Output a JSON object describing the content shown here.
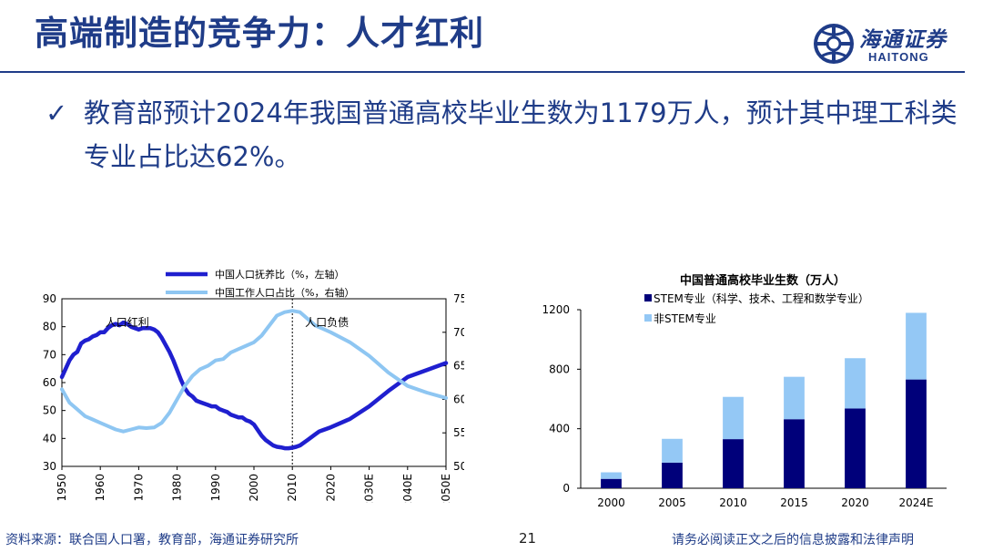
{
  "header": {
    "title": "高端制造的竞争力：人才红利"
  },
  "logo": {
    "cn": "海通证券",
    "en": "HAITONG"
  },
  "bullet": {
    "check": "✓",
    "text": "教育部预计2024年我国普通高校毕业生数为1179万人，预计其中理工科类专业占比达62%。"
  },
  "colors": {
    "dark_blue": "#1f1fcf",
    "light_blue": "#8ec6f2",
    "navy": "#00007a",
    "sky": "#94c8f5",
    "brand": "#1f3c88"
  },
  "chart_data": [
    {
      "type": "line",
      "title": "",
      "x_ticks": [
        "1950",
        "1960",
        "1970",
        "1980",
        "1990",
        "2000",
        "2010",
        "2020",
        "2030E",
        "2040E",
        "2050E"
      ],
      "y_left": {
        "range": [
          30,
          90
        ],
        "ticks": [
          30,
          40,
          50,
          60,
          70,
          80,
          90
        ]
      },
      "y_right": {
        "range": [
          50,
          75
        ],
        "ticks": [
          50,
          55,
          60,
          65,
          70,
          75
        ]
      },
      "legend_position": "top",
      "annotations": [
        {
          "text": "人口红利",
          "x": 1967
        },
        {
          "text": "人口负债",
          "x": 2019
        }
      ],
      "reference_line_x": 2010,
      "series": [
        {
          "name": "中国人口抚养比（%，左轴）",
          "axis": "left",
          "x": [
            1950,
            1951,
            1952,
            1953,
            1954,
            1955,
            1956,
            1957,
            1958,
            1959,
            1960,
            1961,
            1962,
            1963,
            1964,
            1965,
            1966,
            1967,
            1968,
            1969,
            1970,
            1971,
            1972,
            1973,
            1974,
            1975,
            1976,
            1977,
            1978,
            1979,
            1980,
            1981,
            1982,
            1983,
            1984,
            1985,
            1986,
            1987,
            1988,
            1989,
            1990,
            1991,
            1992,
            1993,
            1994,
            1995,
            1996,
            1997,
            1998,
            1999,
            2000,
            2001,
            2002,
            2003,
            2004,
            2005,
            2006,
            2007,
            2008,
            2009,
            2010,
            2011,
            2012,
            2013,
            2014,
            2015,
            2016,
            2017,
            2018,
            2019,
            2020,
            2025,
            2030,
            2035,
            2040,
            2045,
            2050
          ],
          "values": [
            62,
            65,
            68,
            70,
            71,
            74,
            75,
            75.5,
            76.5,
            77,
            78,
            78,
            79.5,
            80.5,
            81,
            80.5,
            81.5,
            81,
            80,
            79.5,
            79,
            79.5,
            79.5,
            79.5,
            79,
            78,
            76,
            73.5,
            71,
            68,
            64.5,
            61,
            58,
            56,
            55,
            53.5,
            53,
            52.5,
            52,
            51.5,
            51.5,
            50.5,
            50,
            49.5,
            48.5,
            48,
            47.5,
            47.5,
            46.5,
            46,
            45,
            43,
            41,
            39.5,
            38.5,
            37.5,
            37,
            36.8,
            36.5,
            36.5,
            36.7,
            37,
            37.5,
            38.5,
            39.5,
            40.5,
            41.5,
            42.5,
            43,
            43.5,
            44,
            47,
            51.5,
            57,
            62,
            64.5,
            67
          ]
        },
        {
          "name": "中国工作人口占比（%，右轴）",
          "axis": "right",
          "x": [
            1950,
            1952,
            1954,
            1956,
            1958,
            1960,
            1962,
            1964,
            1966,
            1968,
            1970,
            1972,
            1974,
            1976,
            1978,
            1980,
            1982,
            1984,
            1986,
            1988,
            1990,
            1992,
            1994,
            1996,
            1998,
            2000,
            2002,
            2004,
            2006,
            2008,
            2010,
            2012,
            2014,
            2016,
            2018,
            2020,
            2025,
            2030,
            2035,
            2040,
            2045,
            2050
          ],
          "values": [
            61.5,
            59.5,
            58.5,
            57.5,
            57,
            56.5,
            56,
            55.5,
            55.2,
            55.5,
            55.8,
            55.7,
            55.8,
            56.5,
            58,
            60,
            62,
            63.5,
            64.5,
            65,
            65.8,
            66,
            67,
            67.5,
            68,
            68.5,
            69.5,
            71,
            72.5,
            73,
            73.2,
            73,
            72,
            71,
            70.5,
            70,
            68.5,
            66.5,
            64,
            62,
            61,
            60.2
          ]
        }
      ]
    },
    {
      "type": "bar",
      "title": "中国普通高校毕业生数（万人）",
      "categories": [
        "2000",
        "2005",
        "2010",
        "2015",
        "2020",
        "2024E"
      ],
      "ylim": [
        0,
        1200
      ],
      "y_ticks": [
        0,
        400,
        800,
        1200
      ],
      "legend_position": "top-left",
      "stacked": true,
      "series": [
        {
          "name": "STEM专业（科学、技术、工程和数学专业）",
          "values": [
            63,
            172,
            330,
            464,
            536,
            731
          ]
        },
        {
          "name": "非STEM专业",
          "values": [
            44,
            160,
            284,
            285,
            338,
            448
          ]
        }
      ]
    }
  ],
  "footer": {
    "source": "资料来源：联合国人口署，教育部，海通证券研究所",
    "page": "21",
    "disclaimer": "请务必阅读正文之后的信息披露和法律声明"
  }
}
